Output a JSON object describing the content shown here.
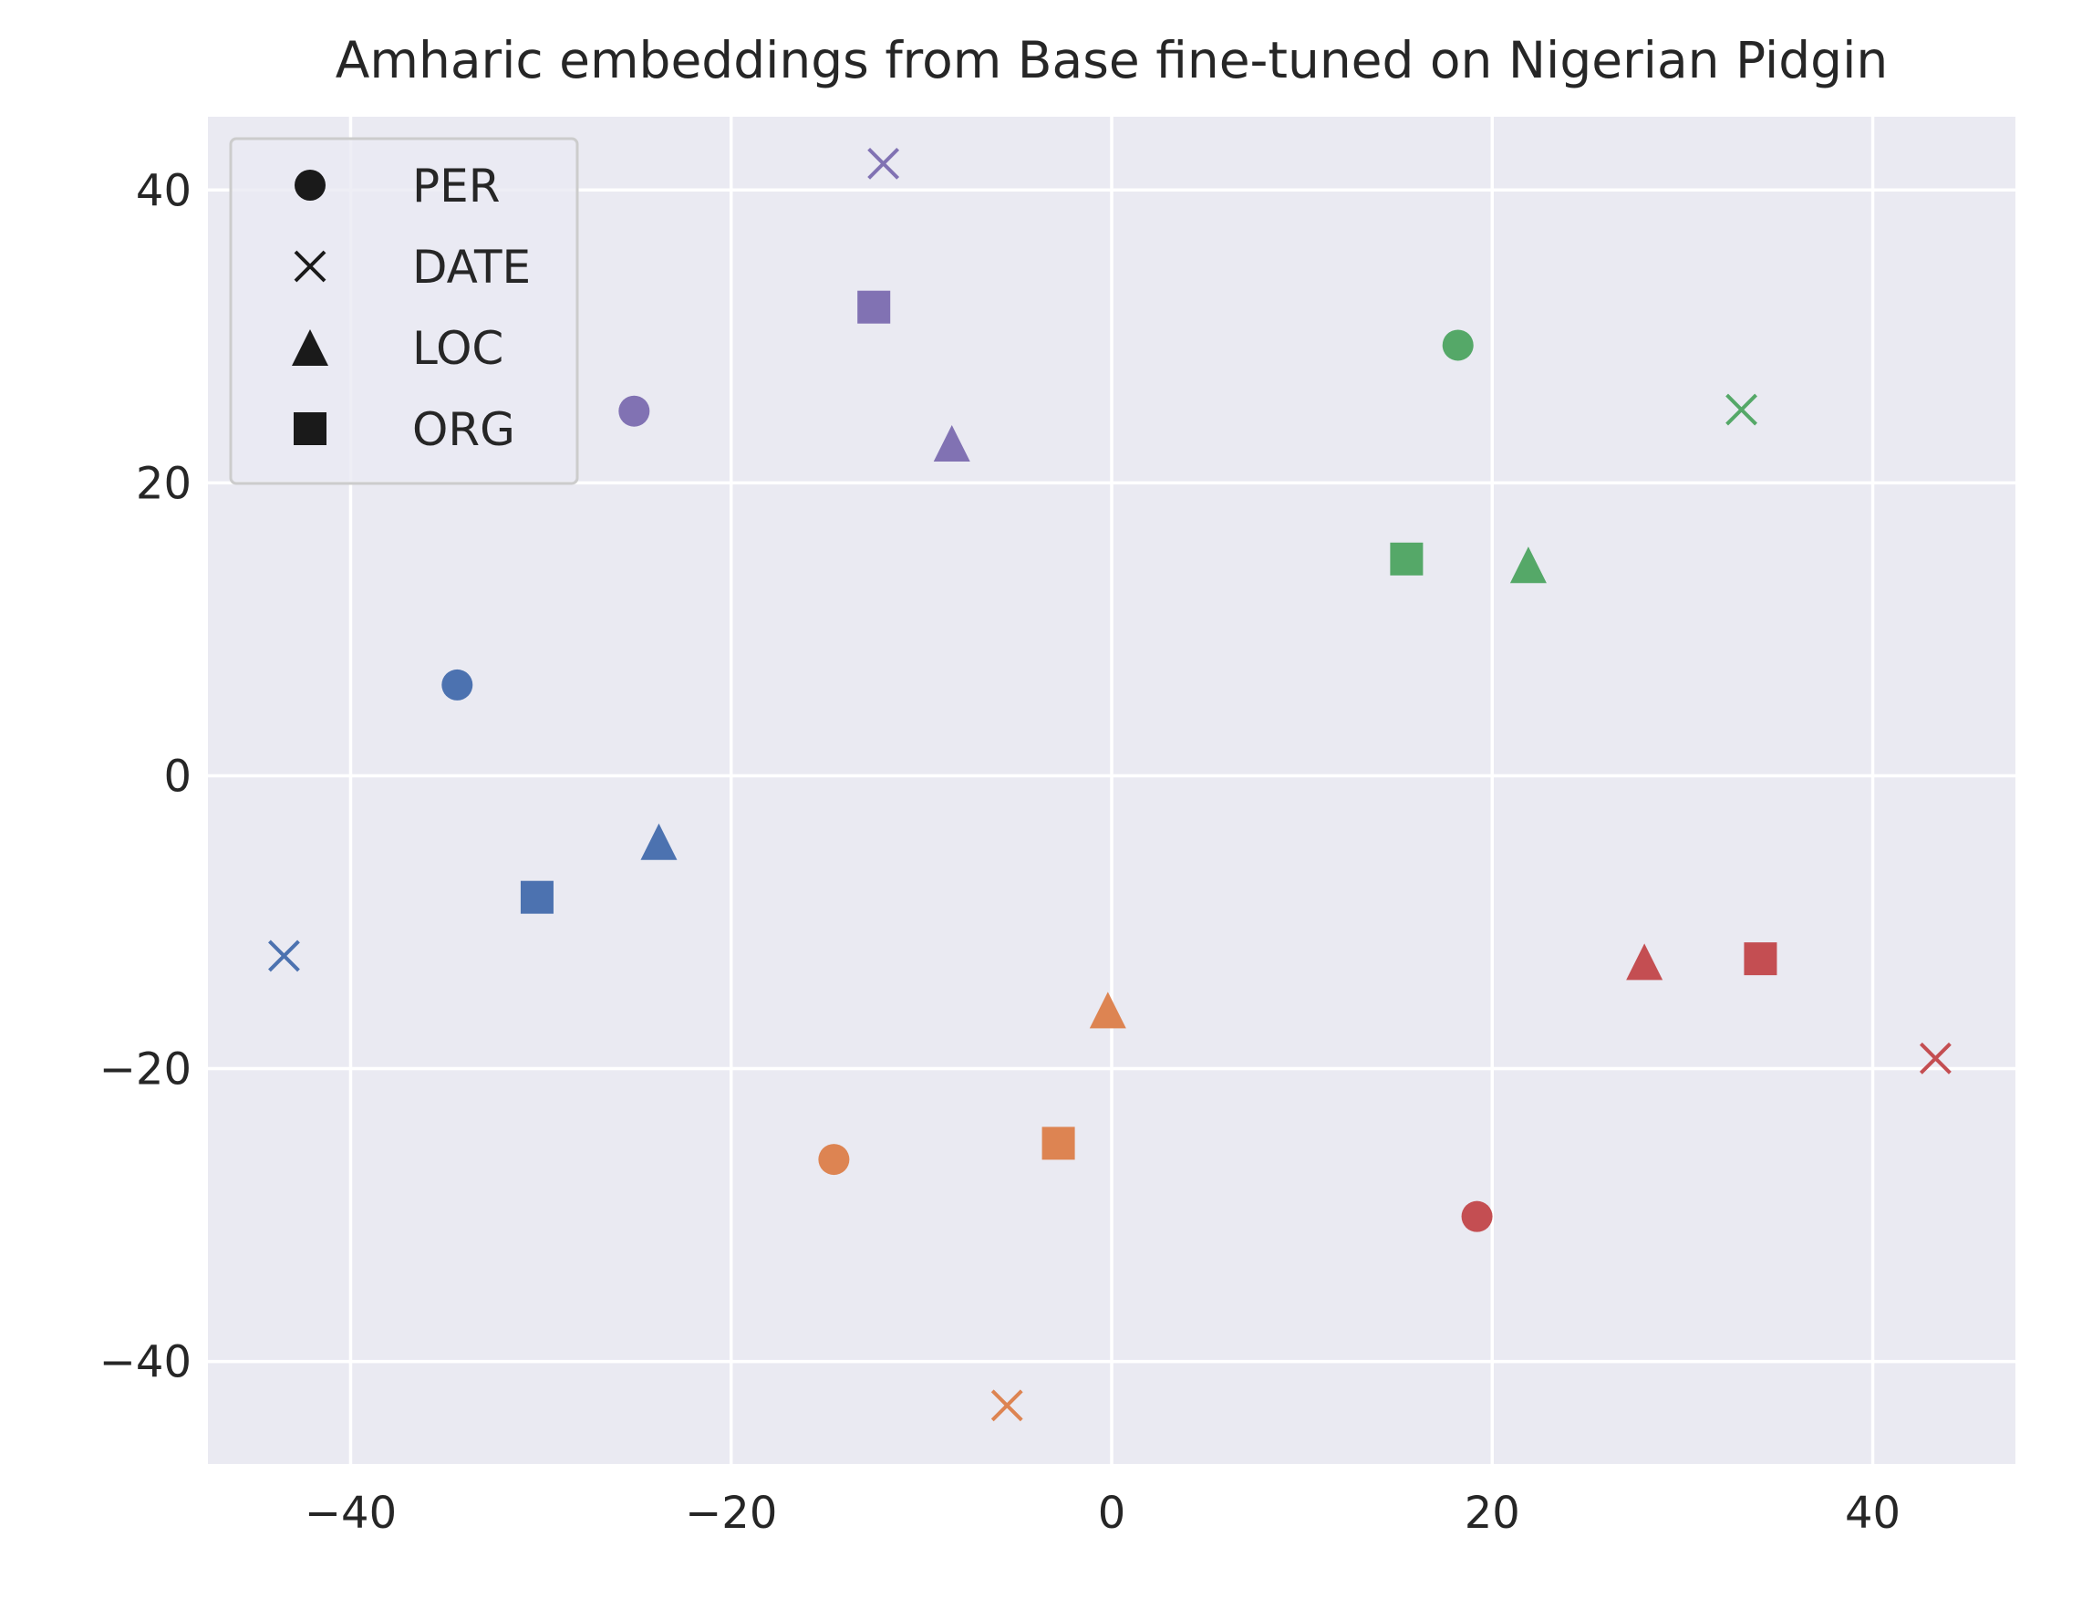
{
  "chart_data": {
    "type": "scatter",
    "title": "Amharic embeddings from Base fine-tuned on Nigerian Pidgin",
    "xlabel": "",
    "ylabel": "",
    "xlim": [
      -47.5,
      47.5
    ],
    "ylim": [
      -47,
      45
    ],
    "x_ticks": [
      -40,
      -20,
      0,
      20,
      40
    ],
    "y_ticks": [
      -40,
      -20,
      0,
      20,
      40
    ],
    "x_tick_labels": [
      "−40",
      "−20",
      "0",
      "20",
      "40"
    ],
    "y_tick_labels": [
      "−40",
      "−20",
      "0",
      "20",
      "40"
    ],
    "grid": true,
    "background_color": "#eaeaf2",
    "legend": {
      "placement": "top-left",
      "entries": [
        {
          "label": "PER",
          "marker": "circle"
        },
        {
          "label": "DATE",
          "marker": "x"
        },
        {
          "label": "LOC",
          "marker": "triangle"
        },
        {
          "label": "ORG",
          "marker": "square"
        }
      ]
    },
    "groups": [
      {
        "color": "#4c72b0",
        "points": [
          {
            "x": -34.4,
            "y": 6.2,
            "marker": "circle"
          },
          {
            "x": -43.5,
            "y": -12.3,
            "marker": "x"
          },
          {
            "x": -23.8,
            "y": -4.5,
            "marker": "triangle"
          },
          {
            "x": -30.2,
            "y": -8.3,
            "marker": "square"
          }
        ]
      },
      {
        "color": "#dd8452",
        "points": [
          {
            "x": -14.6,
            "y": -26.2,
            "marker": "circle"
          },
          {
            "x": -5.5,
            "y": -43.0,
            "marker": "x"
          },
          {
            "x": -0.2,
            "y": -16.0,
            "marker": "triangle"
          },
          {
            "x": -2.8,
            "y": -25.1,
            "marker": "square"
          }
        ]
      },
      {
        "color": "#55a868",
        "points": [
          {
            "x": 18.2,
            "y": 29.4,
            "marker": "circle"
          },
          {
            "x": 33.1,
            "y": 25.0,
            "marker": "x"
          },
          {
            "x": 21.9,
            "y": 14.4,
            "marker": "triangle"
          },
          {
            "x": 15.5,
            "y": 14.8,
            "marker": "square"
          }
        ]
      },
      {
        "color": "#c44e52",
        "points": [
          {
            "x": 19.2,
            "y": -30.1,
            "marker": "circle"
          },
          {
            "x": 43.3,
            "y": -19.3,
            "marker": "x"
          },
          {
            "x": 28.0,
            "y": -12.7,
            "marker": "triangle"
          },
          {
            "x": 34.1,
            "y": -12.5,
            "marker": "square"
          }
        ]
      },
      {
        "color": "#8172b3",
        "points": [
          {
            "x": -25.1,
            "y": 24.9,
            "marker": "circle"
          },
          {
            "x": -12.0,
            "y": 41.8,
            "marker": "x"
          },
          {
            "x": -8.4,
            "y": 22.7,
            "marker": "triangle"
          },
          {
            "x": -12.5,
            "y": 32.0,
            "marker": "square"
          }
        ]
      }
    ]
  }
}
